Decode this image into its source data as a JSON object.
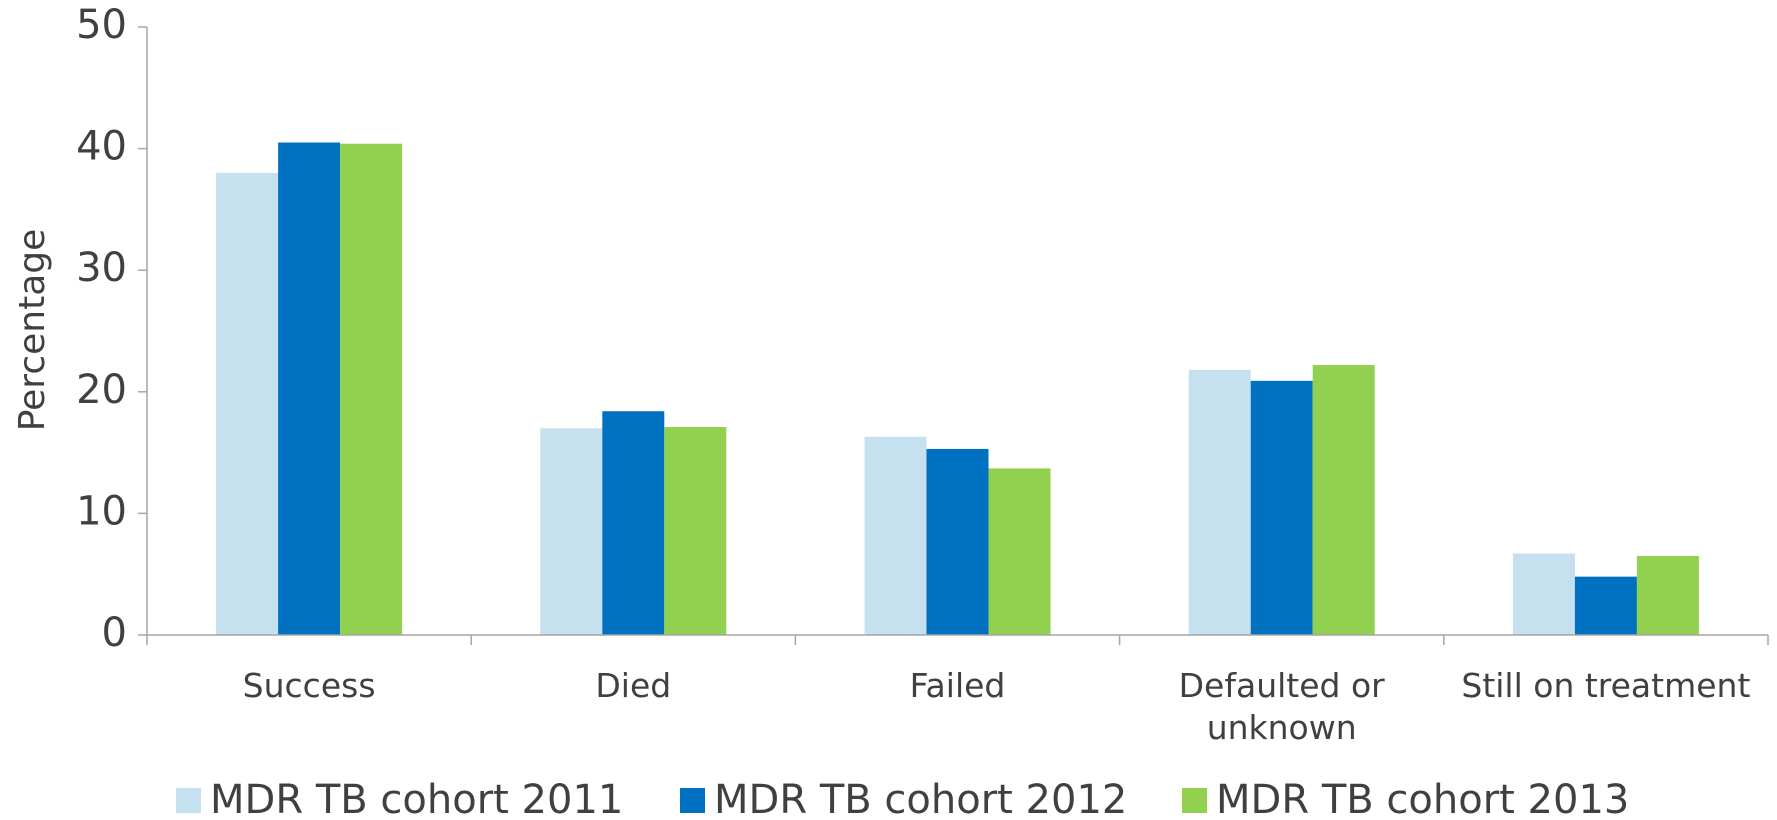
{
  "chart_data": {
    "type": "bar",
    "y_label": "Percentage",
    "categories": [
      "Success",
      "Died",
      "Failed",
      "Defaulted or unknown",
      "Still on treatment"
    ],
    "series": [
      {
        "name": "MDR TB cohort 2011",
        "color": "#c5e0ee",
        "values": [
          38.0,
          17.0,
          16.3,
          21.8,
          6.7
        ]
      },
      {
        "name": "MDR TB cohort 2012",
        "color": "#0070c0",
        "values": [
          40.5,
          18.4,
          15.3,
          20.9,
          4.8
        ]
      },
      {
        "name": "MDR TB cohort 2013",
        "color": "#92d050",
        "values": [
          40.4,
          17.1,
          13.7,
          22.2,
          6.5
        ]
      }
    ],
    "ylim": [
      0,
      50
    ],
    "yticks": [
      0,
      10,
      20,
      30,
      40,
      50
    ],
    "grid": false,
    "legend": "bottom"
  }
}
